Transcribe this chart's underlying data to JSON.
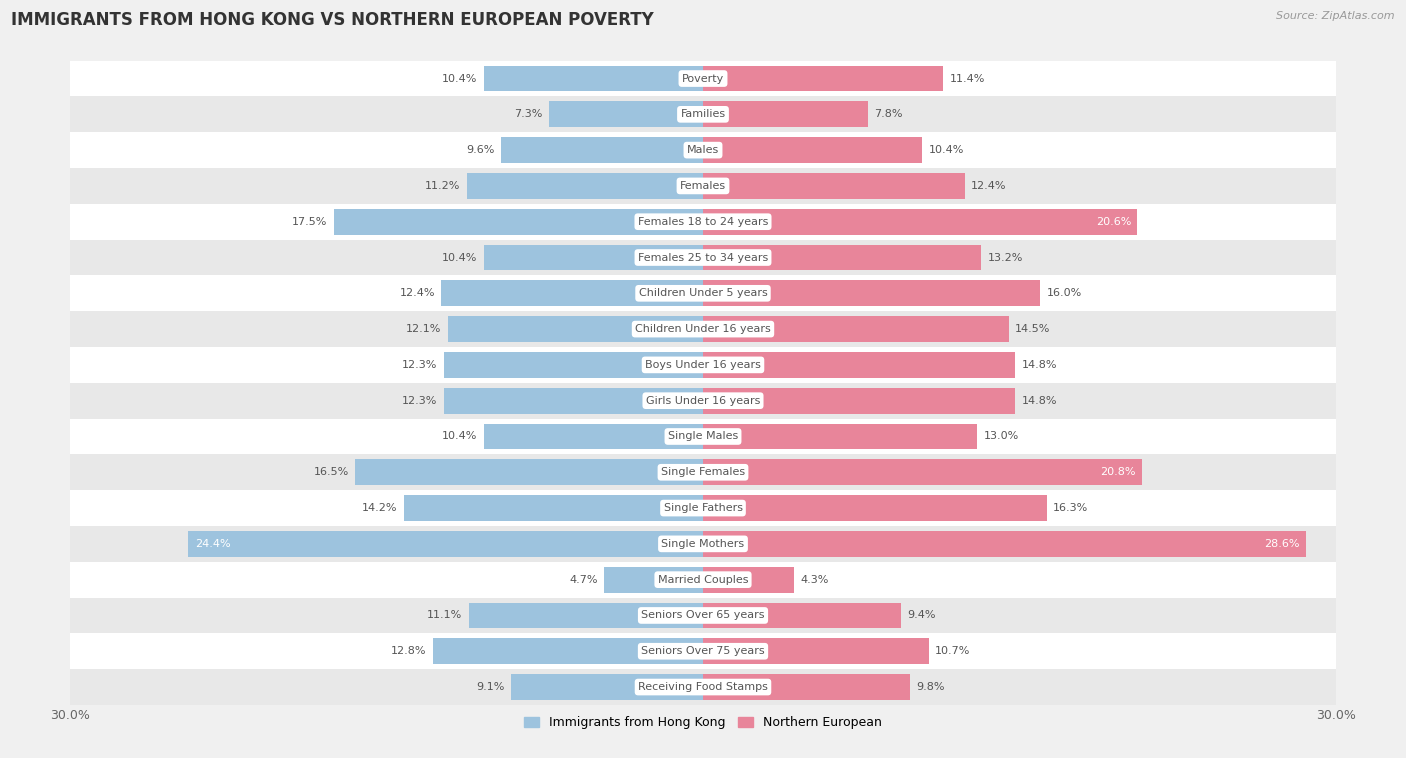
{
  "title": "IMMIGRANTS FROM HONG KONG VS NORTHERN EUROPEAN POVERTY",
  "source": "Source: ZipAtlas.com",
  "categories": [
    "Poverty",
    "Families",
    "Males",
    "Females",
    "Females 18 to 24 years",
    "Females 25 to 34 years",
    "Children Under 5 years",
    "Children Under 16 years",
    "Boys Under 16 years",
    "Girls Under 16 years",
    "Single Males",
    "Single Females",
    "Single Fathers",
    "Single Mothers",
    "Married Couples",
    "Seniors Over 65 years",
    "Seniors Over 75 years",
    "Receiving Food Stamps"
  ],
  "hk_values": [
    10.4,
    7.3,
    9.6,
    11.2,
    17.5,
    10.4,
    12.4,
    12.1,
    12.3,
    12.3,
    10.4,
    16.5,
    14.2,
    24.4,
    4.7,
    11.1,
    12.8,
    9.1
  ],
  "ne_values": [
    11.4,
    7.8,
    10.4,
    12.4,
    20.6,
    13.2,
    16.0,
    14.5,
    14.8,
    14.8,
    13.0,
    20.8,
    16.3,
    28.6,
    4.3,
    9.4,
    10.7,
    9.8
  ],
  "hk_color": "#9dc3de",
  "ne_color": "#e8859a",
  "hk_label": "Immigrants from Hong Kong",
  "ne_label": "Northern European",
  "xlim": 30.0,
  "background_color": "#f0f0f0",
  "row_color_odd": "#ffffff",
  "row_color_even": "#e8e8e8",
  "title_fontsize": 12,
  "source_fontsize": 8,
  "label_fontsize": 8,
  "value_fontsize": 8,
  "bar_height": 0.72,
  "value_inside_threshold": 18.0
}
